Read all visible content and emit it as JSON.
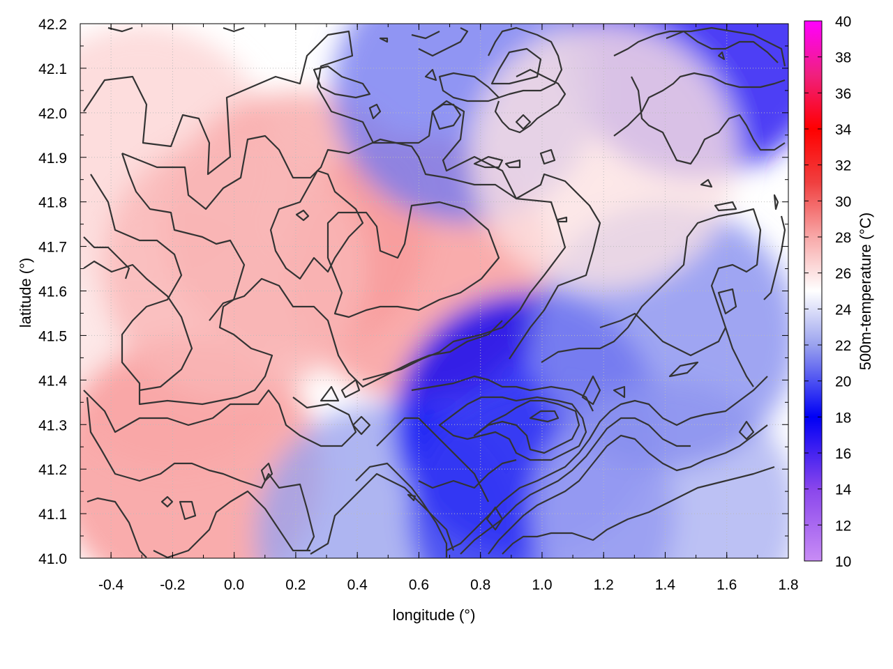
{
  "chart_data": {
    "type": "heatmap",
    "xlabel": "longitude (°)",
    "ylabel": "latitude (°)",
    "xlim": [
      -0.5,
      1.8
    ],
    "ylim": [
      41.0,
      42.2
    ],
    "x_ticks": [
      "-0.4",
      "-0.2",
      "0.0",
      "0.2",
      "0.4",
      "0.6",
      "0.8",
      "1.0",
      "1.2",
      "1.4",
      "1.6",
      "1.8"
    ],
    "y_ticks": [
      "41.0",
      "41.1",
      "41.2",
      "41.3",
      "41.4",
      "41.5",
      "41.6",
      "41.7",
      "41.8",
      "41.9",
      "42.0",
      "42.1",
      "42.2"
    ],
    "grid": true,
    "colorbar": {
      "label": "500m-temperature (°C)",
      "range": [
        10,
        40
      ],
      "ticks": [
        "10",
        "12",
        "14",
        "16",
        "18",
        "20",
        "22",
        "24",
        "26",
        "28",
        "30",
        "32",
        "34",
        "36",
        "38",
        "40"
      ],
      "stops": [
        {
          "value": 10,
          "color": "#c88cf5"
        },
        {
          "value": 14,
          "color": "#8a46ec"
        },
        {
          "value": 18,
          "color": "#0000f5"
        },
        {
          "value": 22,
          "color": "#9aa2ee"
        },
        {
          "value": 25,
          "color": "#ffffff"
        },
        {
          "value": 28,
          "color": "#f8a8a8"
        },
        {
          "value": 31,
          "color": "#f04040"
        },
        {
          "value": 34,
          "color": "#ff0000"
        },
        {
          "value": 37,
          "color": "#f0207e"
        },
        {
          "value": 40,
          "color": "#ff00ff"
        }
      ]
    },
    "temperature_samples": [
      {
        "lon": -0.3,
        "lat": 41.9,
        "temp": 26.5
      },
      {
        "lon": -0.2,
        "lat": 41.5,
        "temp": 26.0
      },
      {
        "lon": -0.15,
        "lat": 41.2,
        "temp": 28.5
      },
      {
        "lon": 0.2,
        "lat": 41.75,
        "temp": 28.0
      },
      {
        "lon": 0.6,
        "lat": 41.65,
        "temp": 28.5
      },
      {
        "lon": 0.0,
        "lat": 41.65,
        "temp": 27.5
      },
      {
        "lon": 0.5,
        "lat": 41.05,
        "temp": 22.0
      },
      {
        "lon": 0.95,
        "lat": 41.3,
        "temp": 18.0
      },
      {
        "lon": 1.0,
        "lat": 41.1,
        "temp": 19.5
      },
      {
        "lon": 1.4,
        "lat": 41.1,
        "temp": 22.5
      },
      {
        "lon": 1.4,
        "lat": 41.5,
        "temp": 21.5
      },
      {
        "lon": 1.5,
        "lat": 42.15,
        "temp": 17.0
      },
      {
        "lon": 0.75,
        "lat": 42.05,
        "temp": 21.0
      },
      {
        "lon": 1.2,
        "lat": 41.9,
        "temp": 26.0
      }
    ]
  }
}
